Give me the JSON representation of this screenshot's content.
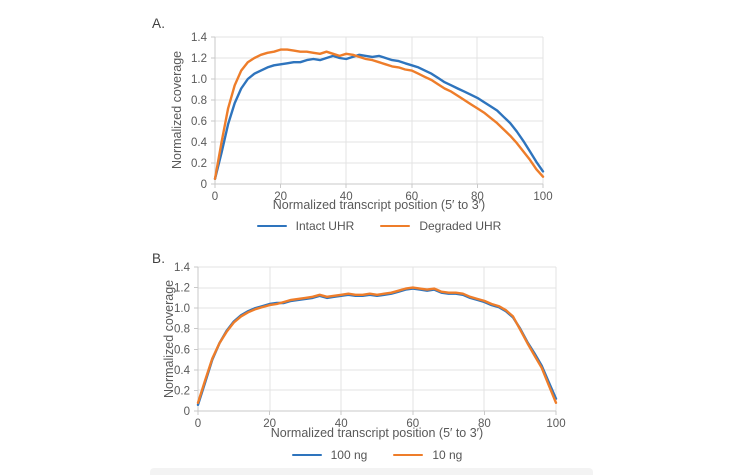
{
  "figure": {
    "background": "#ffffff",
    "panels": [
      {
        "label": "A.",
        "y_axis_title": "Normalized coverage",
        "x_axis_title": "Normalized transcript position (5′ to 3′)",
        "legend": [
          "Intact UHR",
          "Degraded UHR"
        ]
      },
      {
        "label": "B.",
        "y_axis_title": "Normalized coverage",
        "x_axis_title": "Normalized transcript position (5′ to 3′)",
        "legend": [
          "100 ng",
          "10 ng"
        ]
      }
    ],
    "colors": {
      "series_blue": "#2e74bd",
      "series_orange": "#ee7d2a",
      "gridline": "#e3e3e3",
      "axis_line": "#c9c9c9",
      "tick_text": "#595959"
    }
  },
  "chart_data": [
    {
      "type": "line",
      "panel": "A",
      "xlabel": "Normalized transcript position (5′ to 3′)",
      "ylabel": "Normalized coverage",
      "xlim": [
        0,
        100
      ],
      "ylim": [
        0,
        1.4
      ],
      "xticks": [
        0,
        20,
        40,
        60,
        80,
        100
      ],
      "yticks": [
        0,
        0.2,
        0.4,
        0.6,
        0.8,
        1.0,
        1.2,
        1.4
      ],
      "ytick_labels": [
        "0",
        "0.2",
        "0.4",
        "0.6",
        "0.8",
        "1.0",
        "1.2",
        "1.4"
      ],
      "grid": true,
      "legend_position": "bottom",
      "x": [
        0,
        2,
        4,
        6,
        8,
        10,
        12,
        14,
        16,
        18,
        20,
        22,
        24,
        26,
        28,
        30,
        32,
        34,
        36,
        38,
        40,
        42,
        44,
        46,
        48,
        50,
        52,
        54,
        56,
        58,
        60,
        62,
        64,
        66,
        68,
        70,
        72,
        74,
        76,
        78,
        80,
        82,
        84,
        86,
        88,
        90,
        92,
        94,
        96,
        98,
        100
      ],
      "series": [
        {
          "name": "Intact UHR",
          "color": "#2e74bd",
          "values": [
            0.05,
            0.3,
            0.57,
            0.77,
            0.91,
            1.0,
            1.05,
            1.08,
            1.11,
            1.13,
            1.14,
            1.15,
            1.16,
            1.16,
            1.18,
            1.19,
            1.18,
            1.2,
            1.22,
            1.2,
            1.19,
            1.21,
            1.23,
            1.22,
            1.21,
            1.22,
            1.2,
            1.18,
            1.17,
            1.15,
            1.13,
            1.11,
            1.08,
            1.05,
            1.01,
            0.97,
            0.94,
            0.91,
            0.88,
            0.85,
            0.82,
            0.78,
            0.74,
            0.7,
            0.64,
            0.58,
            0.5,
            0.41,
            0.31,
            0.21,
            0.12
          ]
        },
        {
          "name": "Degraded UHR",
          "color": "#ee7d2a",
          "values": [
            0.05,
            0.4,
            0.72,
            0.94,
            1.08,
            1.16,
            1.2,
            1.23,
            1.25,
            1.26,
            1.28,
            1.28,
            1.27,
            1.26,
            1.26,
            1.25,
            1.24,
            1.26,
            1.24,
            1.22,
            1.24,
            1.23,
            1.21,
            1.19,
            1.18,
            1.16,
            1.14,
            1.12,
            1.11,
            1.09,
            1.08,
            1.05,
            1.02,
            0.99,
            0.95,
            0.91,
            0.88,
            0.84,
            0.8,
            0.76,
            0.72,
            0.68,
            0.63,
            0.58,
            0.52,
            0.46,
            0.39,
            0.31,
            0.23,
            0.14,
            0.07
          ]
        }
      ]
    },
    {
      "type": "line",
      "panel": "B",
      "xlabel": "Normalized transcript position (5′ to 3′)",
      "ylabel": "Normalized coverage",
      "xlim": [
        0,
        100
      ],
      "ylim": [
        0,
        1.4
      ],
      "xticks": [
        0,
        20,
        40,
        60,
        80,
        100
      ],
      "yticks": [
        0,
        0.2,
        0.4,
        0.6,
        0.8,
        1.0,
        1.2,
        1.4
      ],
      "ytick_labels": [
        "0",
        "0.2",
        "0.4",
        "0.6",
        "0.8",
        "1.0",
        "1.2",
        "1.4"
      ],
      "grid": true,
      "legend_position": "bottom",
      "x": [
        0,
        2,
        4,
        6,
        8,
        10,
        12,
        14,
        16,
        18,
        20,
        22,
        24,
        26,
        28,
        30,
        32,
        34,
        36,
        38,
        40,
        42,
        44,
        46,
        48,
        50,
        52,
        54,
        56,
        58,
        60,
        62,
        64,
        66,
        68,
        70,
        72,
        74,
        76,
        78,
        80,
        82,
        84,
        86,
        88,
        90,
        92,
        94,
        96,
        98,
        100
      ],
      "series": [
        {
          "name": "100 ng",
          "color": "#2e74bd",
          "values": [
            0.06,
            0.28,
            0.5,
            0.66,
            0.78,
            0.87,
            0.93,
            0.97,
            1.0,
            1.02,
            1.04,
            1.05,
            1.05,
            1.07,
            1.08,
            1.09,
            1.1,
            1.12,
            1.1,
            1.11,
            1.12,
            1.13,
            1.12,
            1.12,
            1.13,
            1.12,
            1.13,
            1.14,
            1.16,
            1.18,
            1.19,
            1.18,
            1.17,
            1.18,
            1.15,
            1.14,
            1.14,
            1.13,
            1.1,
            1.08,
            1.06,
            1.03,
            1.01,
            0.97,
            0.91,
            0.8,
            0.67,
            0.56,
            0.44,
            0.28,
            0.12
          ]
        },
        {
          "name": "10 ng",
          "color": "#ee7d2a",
          "values": [
            0.08,
            0.3,
            0.51,
            0.66,
            0.77,
            0.86,
            0.92,
            0.96,
            0.99,
            1.01,
            1.03,
            1.04,
            1.06,
            1.08,
            1.09,
            1.1,
            1.11,
            1.13,
            1.11,
            1.12,
            1.13,
            1.14,
            1.13,
            1.13,
            1.14,
            1.13,
            1.14,
            1.15,
            1.17,
            1.19,
            1.2,
            1.19,
            1.18,
            1.19,
            1.16,
            1.15,
            1.15,
            1.14,
            1.11,
            1.09,
            1.07,
            1.04,
            1.02,
            0.98,
            0.92,
            0.79,
            0.66,
            0.54,
            0.42,
            0.25,
            0.08
          ]
        }
      ]
    }
  ]
}
